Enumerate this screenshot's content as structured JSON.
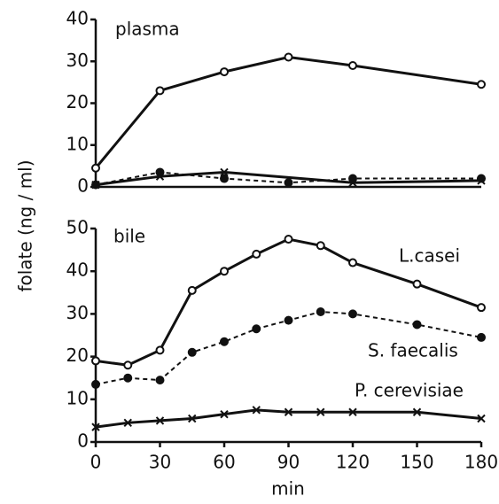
{
  "chart_data": [
    {
      "type": "line",
      "title": "plasma",
      "ylabel": "folate (ng / ml)",
      "xlim": [
        0,
        180
      ],
      "ylim": [
        0,
        40
      ],
      "yticks": [
        0,
        10,
        20,
        30,
        40
      ],
      "series": [
        {
          "color": "#111111",
          "marker": "open-circle",
          "dashed": false,
          "x": [
            0,
            30,
            60,
            90,
            120,
            180
          ],
          "values": [
            4.5,
            23,
            27.5,
            31,
            29,
            24.5
          ]
        },
        {
          "color": "#111111",
          "marker": "filled-circle",
          "dashed": true,
          "x": [
            0,
            30,
            60,
            90,
            120,
            180
          ],
          "values": [
            0.5,
            3.5,
            2,
            1,
            2,
            2
          ]
        },
        {
          "color": "#111111",
          "marker": "x",
          "dashed": false,
          "x": [
            0,
            30,
            60,
            120,
            180
          ],
          "values": [
            0.5,
            2.5,
            3.5,
            1,
            1.5
          ]
        }
      ]
    },
    {
      "type": "line",
      "title": "bile",
      "xlabel": "min",
      "xlim": [
        0,
        180
      ],
      "xticks": [
        0,
        30,
        60,
        90,
        120,
        150,
        180
      ],
      "ylim": [
        0,
        50
      ],
      "yticks": [
        0,
        10,
        20,
        30,
        40,
        50
      ],
      "series": [
        {
          "name": "L.casei",
          "color": "#111111",
          "marker": "open-circle",
          "dashed": false,
          "x": [
            0,
            15,
            30,
            45,
            60,
            75,
            90,
            105,
            120,
            150,
            180
          ],
          "values": [
            19,
            18,
            21.5,
            35.5,
            40,
            44,
            47.5,
            46,
            42,
            37,
            31.5
          ]
        },
        {
          "name": "S. faecalis",
          "color": "#111111",
          "marker": "filled-circle",
          "dashed": true,
          "x": [
            0,
            15,
            30,
            45,
            60,
            75,
            90,
            105,
            120,
            150,
            180
          ],
          "values": [
            13.5,
            15,
            14.5,
            21,
            23.5,
            26.5,
            28.5,
            30.5,
            30,
            27.5,
            24.5
          ]
        },
        {
          "name": "P. cerevisiae",
          "color": "#111111",
          "marker": "x",
          "dashed": false,
          "x": [
            0,
            15,
            30,
            45,
            60,
            75,
            90,
            105,
            120,
            150,
            180
          ],
          "values": [
            3.5,
            4.5,
            5,
            5.5,
            6.5,
            7.5,
            7,
            7,
            7,
            7,
            5.5
          ]
        }
      ]
    }
  ]
}
